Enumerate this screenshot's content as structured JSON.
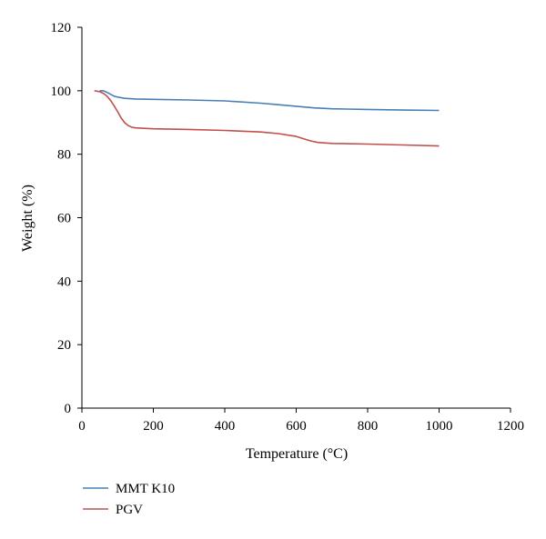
{
  "chart_data": {
    "type": "line",
    "xlabel": "Temperature (°C)",
    "ylabel": "Weight (%)",
    "xlim": [
      0,
      1200
    ],
    "ylim": [
      0,
      120
    ],
    "xticks": [
      0,
      200,
      400,
      600,
      800,
      1000,
      1200
    ],
    "yticks": [
      0,
      20,
      40,
      60,
      80,
      100,
      120
    ],
    "grid": false,
    "legend_position": "bottom-left",
    "series": [
      {
        "name": "MMT K10",
        "color": "#4a7fb5",
        "x": [
          50,
          60,
          70,
          80,
          90,
          100,
          120,
          150,
          200,
          300,
          400,
          500,
          550,
          600,
          650,
          700,
          800,
          900,
          1000
        ],
        "y": [
          100.0,
          100.0,
          99.5,
          98.9,
          98.3,
          98.0,
          97.6,
          97.4,
          97.3,
          97.1,
          96.8,
          96.1,
          95.6,
          95.1,
          94.6,
          94.3,
          94.1,
          93.9,
          93.8
        ]
      },
      {
        "name": "PGV",
        "color": "#c0504d",
        "x": [
          35,
          50,
          60,
          70,
          80,
          90,
          100,
          110,
          120,
          130,
          140,
          150,
          200,
          300,
          400,
          500,
          550,
          600,
          620,
          640,
          660,
          700,
          800,
          900,
          1000
        ],
        "y": [
          100.0,
          99.7,
          99.2,
          98.3,
          97.0,
          95.3,
          93.4,
          91.4,
          89.9,
          89.0,
          88.5,
          88.3,
          88.0,
          87.8,
          87.5,
          87.0,
          86.5,
          85.6,
          84.9,
          84.2,
          83.7,
          83.4,
          83.2,
          82.9,
          82.6
        ]
      }
    ]
  }
}
